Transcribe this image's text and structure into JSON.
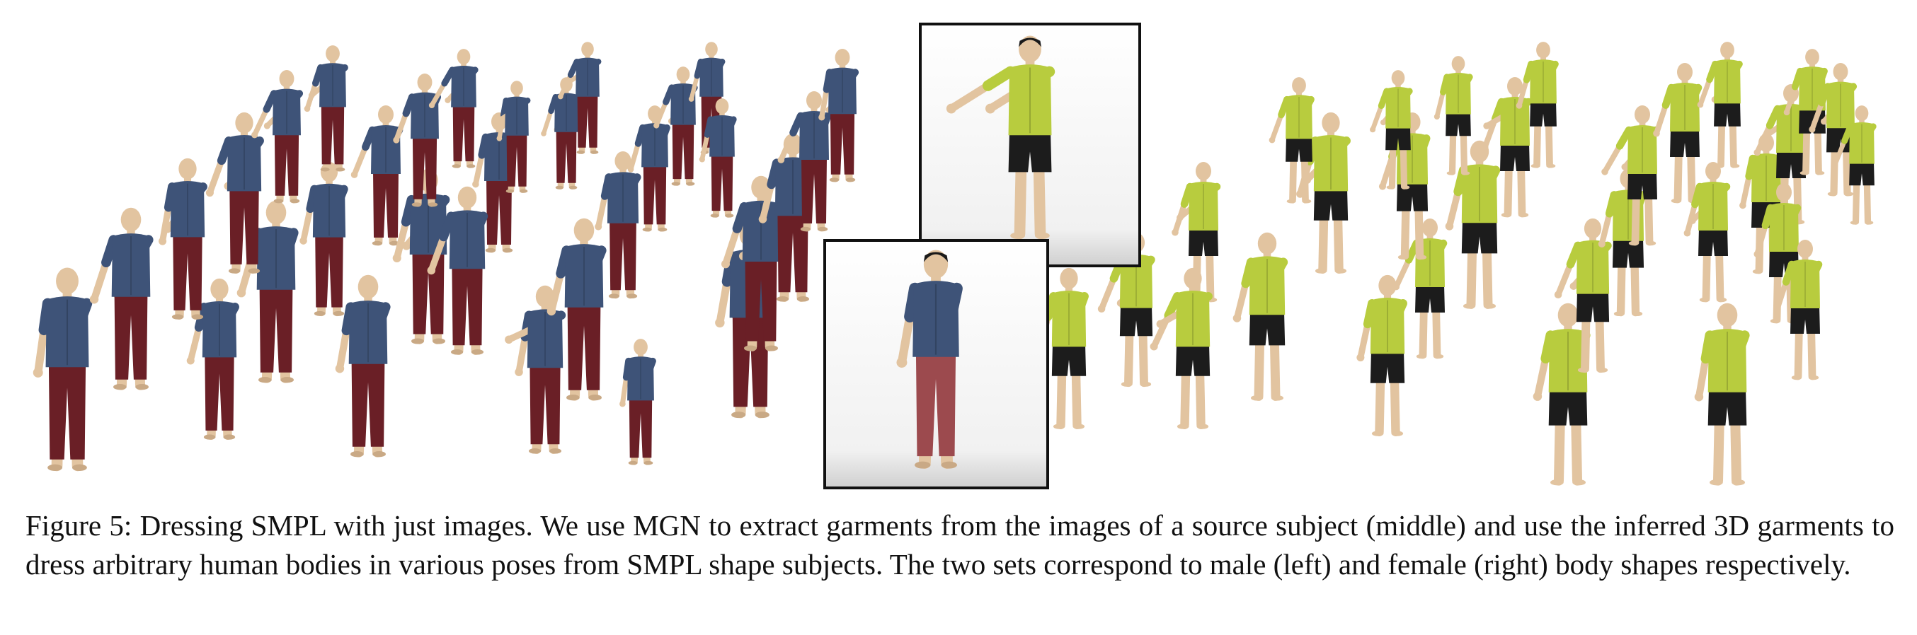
{
  "figure": {
    "colors": {
      "skin": "#e2c4a0",
      "shirt_blue": "#3e5378",
      "pants_maroon": "#6a1f26",
      "top_green": "#b8cc3e",
      "shorts_black": "#1c1c1c",
      "frame_border": "#111111"
    },
    "panels": [
      "male-set",
      "source-subject-images",
      "female-set"
    ]
  },
  "caption": {
    "text": "Figure 5: Dressing SMPL with just images. We use MGN to extract garments from the images of a source subject (middle) and use the inferred 3D garments to dress arbitrary human bodies in various poses from SMPL shape subjects. The two sets correspond to male (left) and female (right) body shapes respectively."
  }
}
